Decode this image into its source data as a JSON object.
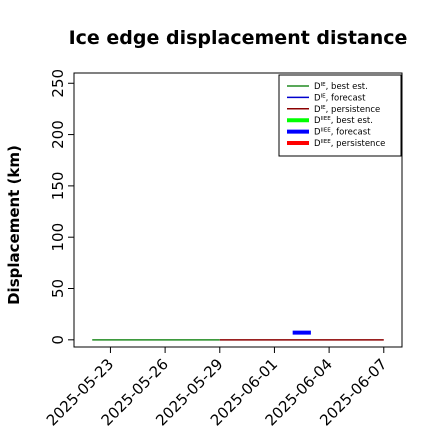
{
  "chart_data": {
    "type": "line",
    "title": "Ice edge displacement distance",
    "xlabel": "",
    "ylabel": "Displacement (km)",
    "xlim": [
      "2025-05-21",
      "2025-06-08"
    ],
    "ylim": [
      -7,
      260
    ],
    "y_ticks": [
      0,
      50,
      100,
      150,
      200,
      250
    ],
    "x_ticks": [
      {
        "date": "2025-05-23",
        "label": "2025-05-23",
        "color": "#000000"
      },
      {
        "date": "2025-05-26",
        "label": "2025-05-26",
        "color": "#000000"
      },
      {
        "date": "2025-05-29",
        "label": "2025-05-29",
        "color": "#228B22"
      },
      {
        "date": "2025-06-01",
        "label": "2025-06-01",
        "color": "#000000"
      },
      {
        "date": "2025-06-04",
        "label": "2025-06-04",
        "color": "#000000"
      },
      {
        "date": "2025-06-07",
        "label": "2025-06-07",
        "color": "#000000"
      }
    ],
    "grid": false,
    "legend_position": "top-right",
    "series": [
      {
        "name_main": "D",
        "name_sup": "IE",
        "name_tail": ", best est.",
        "color": "#228B22",
        "width": 1.5,
        "x": [
          "2025-05-22",
          "2025-05-29"
        ],
        "y": [
          0,
          0
        ]
      },
      {
        "name_main": "D",
        "name_sup": "IE",
        "name_tail": ", forecast",
        "color": "#0000CD",
        "width": 1.5,
        "x": [],
        "y": []
      },
      {
        "name_main": "D",
        "name_sup": "IE",
        "name_tail": ", persistence",
        "color": "#8B0000",
        "width": 1.5,
        "x": [
          "2025-05-29",
          "2025-06-07"
        ],
        "y": [
          0,
          0
        ]
      },
      {
        "name_main": "D",
        "name_sup": "IIEE",
        "name_tail": ", best est.",
        "color": "#00FF00",
        "width": 4,
        "x": [],
        "y": []
      },
      {
        "name_main": "D",
        "name_sup": "IIEE",
        "name_tail": ", forecast",
        "color": "#0000FF",
        "width": 4,
        "x": [
          "2025-06-02",
          "2025-06-03"
        ],
        "y": [
          7,
          7
        ]
      },
      {
        "name_main": "D",
        "name_sup": "IIEE",
        "name_tail": ", persistence",
        "color": "#FF0000",
        "width": 4,
        "x": [],
        "y": []
      }
    ]
  }
}
